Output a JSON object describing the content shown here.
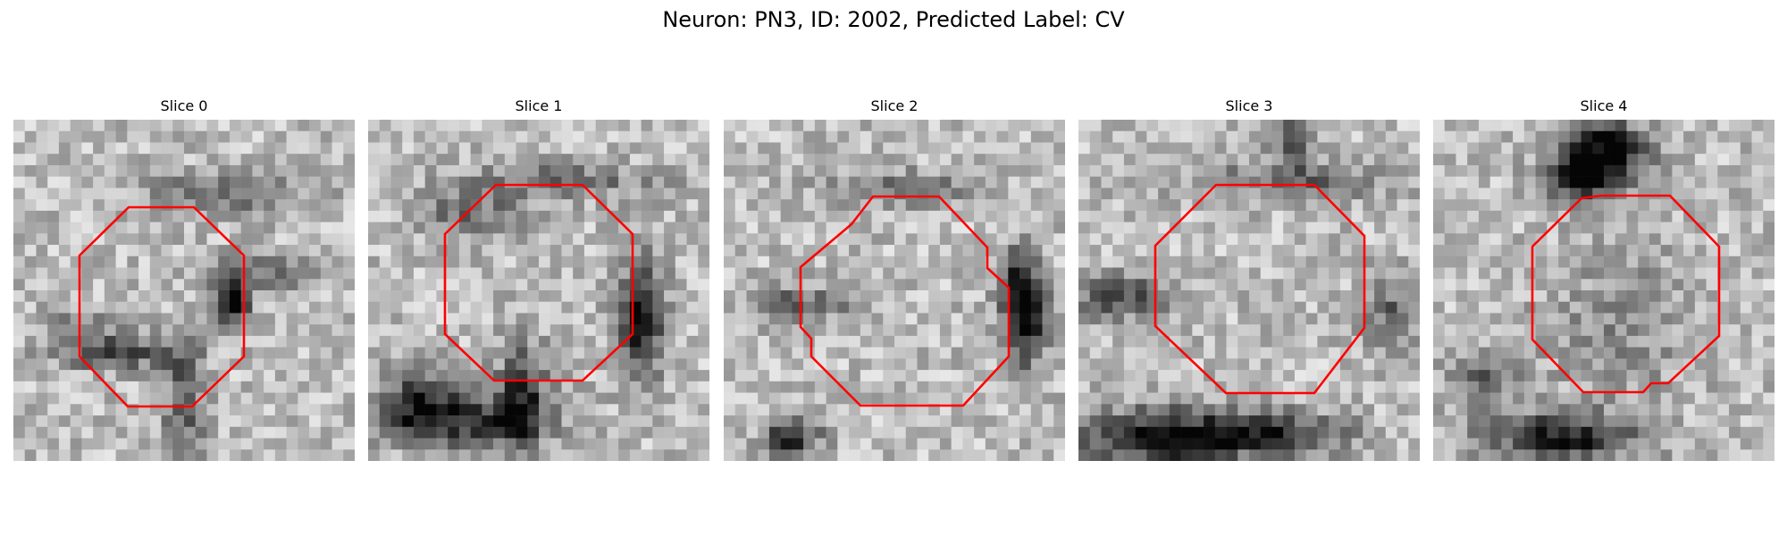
{
  "figure": {
    "title": "Neuron: PN3, ID: 2002, Predicted Label: CV"
  },
  "panels": [
    {
      "title": "Slice 0",
      "texture": "gray-noise-texture",
      "outline_color": "#ff0000"
    },
    {
      "title": "Slice 1",
      "texture": "gray-noise-texture",
      "outline_color": "#ff0000"
    },
    {
      "title": "Slice 2",
      "texture": "gray-noise-texture",
      "outline_color": "#ff0000"
    },
    {
      "title": "Slice 3",
      "texture": "gray-noise-texture",
      "outline_color": "#ff0000"
    },
    {
      "title": "Slice 4",
      "texture": "gray-noise-texture",
      "outline_color": "#ff0000"
    }
  ]
}
